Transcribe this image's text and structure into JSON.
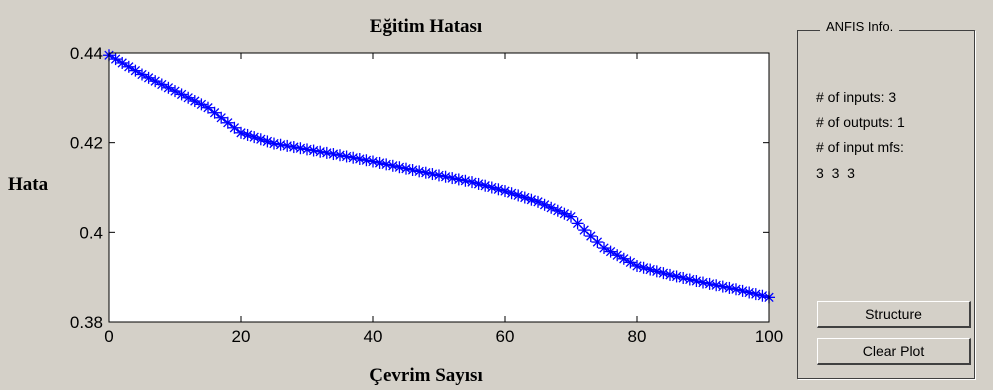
{
  "chart_data": {
    "type": "line",
    "title": "Eğitim Hatası",
    "xlabel": "Çevrim Sayısı",
    "ylabel": "Hata",
    "xlim": [
      0,
      100
    ],
    "ylim": [
      0.38,
      0.44
    ],
    "xticks": [
      "0",
      "20",
      "40",
      "60",
      "80",
      "100"
    ],
    "yticks": [
      "0.44",
      "0.42",
      "0.4",
      "0.38"
    ],
    "marker": "*",
    "series_color": "#0000ff",
    "grid": false,
    "series": [
      {
        "x": [
          0,
          5,
          10,
          15,
          20,
          25,
          30,
          35,
          40,
          45,
          50,
          55,
          60,
          65,
          70,
          72,
          75,
          80,
          85,
          90,
          95,
          100
        ],
        "y": [
          0.4395,
          0.4352,
          0.4315,
          0.4278,
          0.4222,
          0.4198,
          0.4185,
          0.4172,
          0.4158,
          0.4142,
          0.4127,
          0.4112,
          0.4092,
          0.4068,
          0.4035,
          0.4005,
          0.3965,
          0.3925,
          0.3905,
          0.3888,
          0.3873,
          0.3855
        ]
      }
    ]
  },
  "info_panel": {
    "title": "ANFIS Info.",
    "inputs_line": "# of inputs: 3",
    "outputs_line": "# of outputs: 1",
    "mfs_line": "# of input mfs:",
    "mfs_values": "3  3  3",
    "structure_label": "Structure",
    "clear_plot_label": "Clear Plot"
  }
}
